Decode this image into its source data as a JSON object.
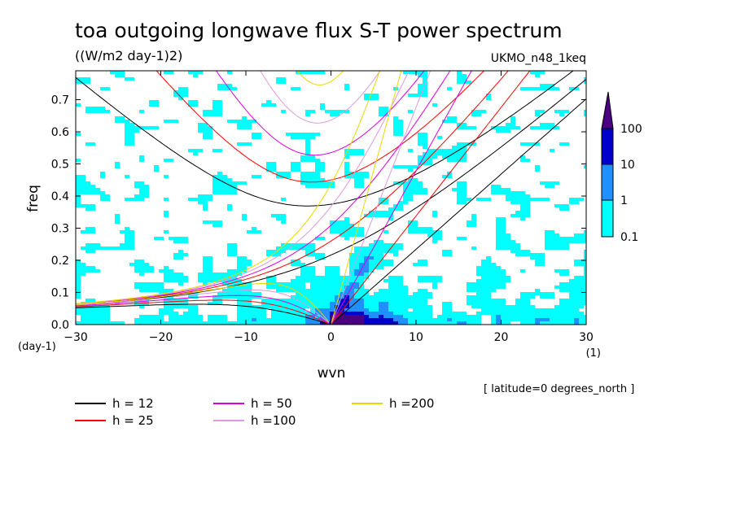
{
  "chart_data": {
    "type": "heatmap",
    "title": "toa outgoing longwave flux S-T power spectrum",
    "subtitle": "((W/m2 day-1)2)",
    "dataset": "UKMO_n48_1keq",
    "xlabel": "wvn",
    "ylabel": "freq",
    "x_unit": "(1)",
    "y_unit": "(day-1)",
    "xlim": [
      -30,
      30
    ],
    "ylim": [
      0,
      0.79
    ],
    "x_ticks": [
      -30,
      -20,
      -10,
      0,
      10,
      20,
      30
    ],
    "y_ticks": [
      0.0,
      0.1,
      0.2,
      0.3,
      0.4,
      0.5,
      0.6,
      0.7
    ],
    "x_tick_labels": [
      "-30",
      "-20",
      "-10",
      "0",
      "10",
      "20",
      "30"
    ],
    "y_tick_labels": [
      "0.0",
      "0.1",
      "0.2",
      "0.3",
      "0.4",
      "0.5",
      "0.6",
      "0.7"
    ],
    "colorbar": {
      "levels": [
        "0.1",
        "1",
        "10",
        "100"
      ],
      "colors": [
        "#ffffff",
        "#00ffff",
        "#1e90ff",
        "#0000cd",
        "#4b0082"
      ]
    },
    "series": [
      {
        "name": "h = 12",
        "color": "#000000"
      },
      {
        "name": "h = 25",
        "color": "#ff0000"
      },
      {
        "name": "h = 50",
        "color": "#dd00dd"
      },
      {
        "name": "h =100",
        "color": "#dd99dd"
      },
      {
        "name": "h =200",
        "color": "#e8d800"
      }
    ],
    "note": "[ latitude=0 degrees_north ]",
    "grid": false,
    "legend_position": "bottom"
  }
}
